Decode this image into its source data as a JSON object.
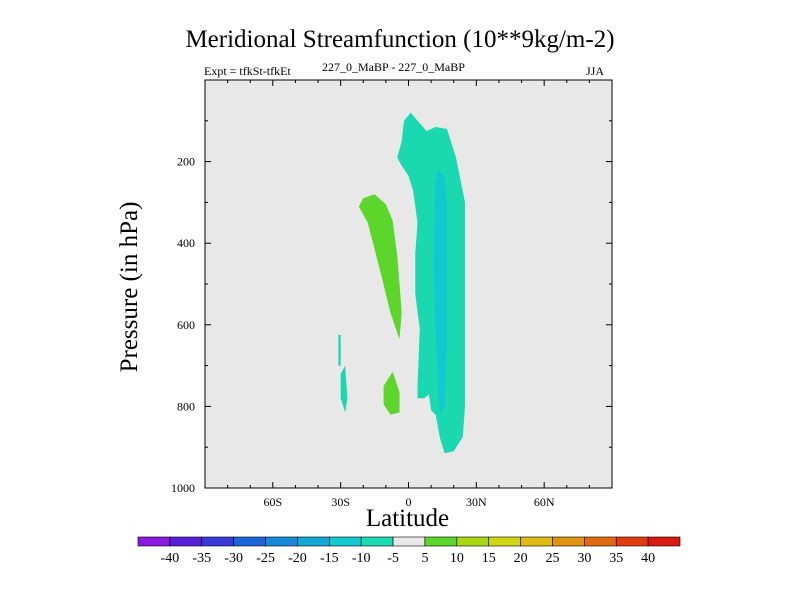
{
  "figure": {
    "title": "Meridional Streamfunction (10**9kg/m-2)",
    "experiment": "Expt = tfkSt-tfkEt",
    "subtitle": "227_0_MaBP - 227_0_MaBP",
    "season": "JJA",
    "xlabel": "Latitude",
    "ylabel": "Pressure (in hPa)"
  },
  "chart_data": {
    "type": "contour",
    "title": "Meridional Streamfunction (10**9kg/m-2)",
    "xlabel": "Latitude",
    "ylabel": "Pressure (in hPa)",
    "xlim": [
      -90,
      90
    ],
    "ylim": [
      1000,
      0
    ],
    "x_ticks": [
      -60,
      -30,
      0,
      30,
      60
    ],
    "x_tick_labels": [
      "60S",
      "30S",
      "0",
      "30N",
      "60N"
    ],
    "y_ticks": [
      200,
      400,
      600,
      800,
      1000
    ],
    "y_tick_labels": [
      "200",
      "400",
      "600",
      "800",
      "1000"
    ],
    "colorbar": {
      "levels": [
        -40,
        -35,
        -30,
        -25,
        -20,
        -15,
        -10,
        -5,
        5,
        10,
        15,
        20,
        25,
        30,
        35,
        40
      ],
      "colors": [
        "#8a1ae0",
        "#5a1ed8",
        "#3a3ad8",
        "#1a66d8",
        "#1a88d8",
        "#14a8d4",
        "#14c8d0",
        "#1ad8b0",
        "#e8e8e8",
        "#5cd62a",
        "#a8d812",
        "#d2d414",
        "#e0bb14",
        "#e09412",
        "#e06a12",
        "#e03c12",
        "#d81a12"
      ]
    },
    "regions": [
      {
        "name": "teal-cell",
        "range": "-10 to -5",
        "color": "#1ad8b0",
        "points": [
          [
            -5,
            190
          ],
          [
            -3,
            150
          ],
          [
            -2,
            100
          ],
          [
            1,
            80
          ],
          [
            4,
            100
          ],
          [
            8,
            125
          ],
          [
            12,
            115
          ],
          [
            17,
            120
          ],
          [
            21,
            190
          ],
          [
            25,
            300
          ],
          [
            25,
            450
          ],
          [
            25,
            800
          ],
          [
            24,
            875
          ],
          [
            20,
            910
          ],
          [
            16,
            915
          ],
          [
            14,
            880
          ],
          [
            12,
            820
          ],
          [
            10,
            810
          ],
          [
            9,
            770
          ],
          [
            7,
            780
          ],
          [
            4,
            780
          ],
          [
            4,
            750
          ],
          [
            5,
            610
          ],
          [
            3,
            525
          ],
          [
            3,
            425
          ],
          [
            4,
            350
          ],
          [
            3,
            310
          ],
          [
            2,
            270
          ],
          [
            0,
            235
          ],
          [
            -3,
            210
          ]
        ]
      },
      {
        "name": "cyan-core",
        "range": "-15 to -10",
        "color": "#14c8d0",
        "points": [
          [
            12,
            250
          ],
          [
            13,
            220
          ],
          [
            16,
            235
          ],
          [
            17,
            300
          ],
          [
            17,
            400
          ],
          [
            17,
            650
          ],
          [
            16,
            800
          ],
          [
            14,
            820
          ],
          [
            13,
            750
          ],
          [
            12,
            600
          ],
          [
            11,
            450
          ]
        ]
      },
      {
        "name": "green-cell-upper",
        "range": "5 to 10",
        "color": "#5cd62a",
        "points": [
          [
            -20,
            290
          ],
          [
            -15,
            280
          ],
          [
            -10,
            305
          ],
          [
            -7,
            345
          ],
          [
            -5,
            430
          ],
          [
            -4,
            500
          ],
          [
            -3,
            570
          ],
          [
            -4,
            635
          ],
          [
            -8,
            570
          ],
          [
            -12,
            480
          ],
          [
            -15,
            415
          ],
          [
            -18,
            350
          ],
          [
            -22,
            310
          ]
        ]
      },
      {
        "name": "green-cell-lower",
        "range": "5 to 10",
        "color": "#5cd62a",
        "points": [
          [
            -11,
            750
          ],
          [
            -7,
            715
          ],
          [
            -4,
            765
          ],
          [
            -4,
            815
          ],
          [
            -8,
            820
          ],
          [
            -11,
            795
          ]
        ]
      },
      {
        "name": "teal-patch-south",
        "range": "-10 to -5",
        "color": "#1ad8b0",
        "points": [
          [
            -30,
            720
          ],
          [
            -28,
            700
          ],
          [
            -27,
            780
          ],
          [
            -28,
            815
          ],
          [
            -30,
            780
          ]
        ]
      },
      {
        "name": "teal-sliver-south",
        "range": "-10 to -5",
        "color": "#1ad8b0",
        "points": [
          [
            -31,
            640
          ],
          [
            -31,
            625
          ],
          [
            -30,
            625
          ],
          [
            -30,
            700
          ],
          [
            -31,
            700
          ]
        ]
      }
    ]
  }
}
